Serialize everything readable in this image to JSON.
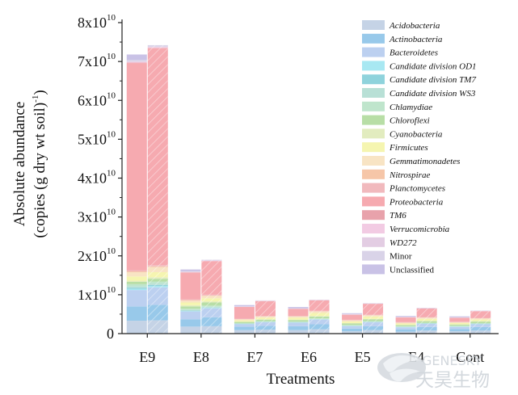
{
  "chart_data": {
    "type": "bar",
    "stacked": true,
    "xlabel": "Treatments",
    "ylabel_line1": "Absolute abundance",
    "ylabel_line2_main": "(copies (g dry wt soil)",
    "ylabel_line2_sup": "-1",
    "ylabel_line2_end": ")",
    "ylim": [
      0,
      80000000000
    ],
    "yticks": [
      {
        "base": "0",
        "exp": ""
      },
      {
        "base": "1x10",
        "exp": "10"
      },
      {
        "base": "2x10",
        "exp": "10"
      },
      {
        "base": "3x10",
        "exp": "10"
      },
      {
        "base": "4x10",
        "exp": "10"
      },
      {
        "base": "5x10",
        "exp": "10"
      },
      {
        "base": "6x10",
        "exp": "10"
      },
      {
        "base": "7x10",
        "exp": "10"
      },
      {
        "base": "8x10",
        "exp": "10"
      }
    ],
    "categories": [
      "E9",
      "E8",
      "E7",
      "E6",
      "E5",
      "E4",
      "Cont"
    ],
    "legend_position": "top-right",
    "series": [
      {
        "name": "Acidobacteria",
        "color": "#c5d3e6",
        "italic": true,
        "values": [
          [
            3300000000.0,
            3400000000.0
          ],
          [
            1800000000.0,
            1900000000.0
          ],
          [
            900000000.0,
            1000000000.0
          ],
          [
            900000000.0,
            1100000000.0
          ],
          [
            600000000.0,
            900000000.0
          ],
          [
            500000000.0,
            800000000.0
          ],
          [
            600000000.0,
            800000000.0
          ]
        ]
      },
      {
        "name": "Actinobacteria",
        "color": "#98c9ea",
        "italic": true,
        "values": [
          [
            3700000000.0,
            4000000000.0
          ],
          [
            1900000000.0,
            2300000000.0
          ],
          [
            900000000.0,
            1000000000.0
          ],
          [
            1000000000.0,
            1300000000.0
          ],
          [
            700000000.0,
            1000000000.0
          ],
          [
            600000000.0,
            900000000.0
          ],
          [
            600000000.0,
            900000000.0
          ]
        ]
      },
      {
        "name": "Bacteroidetes",
        "color": "#bcd0f0",
        "italic": true,
        "values": [
          [
            4200000000.0,
            4500000000.0
          ],
          [
            2000000000.0,
            2300000000.0
          ],
          [
            600000000.0,
            900000000.0
          ],
          [
            900000000.0,
            1200000000.0
          ],
          [
            600000000.0,
            1000000000.0
          ],
          [
            500000000.0,
            800000000.0
          ],
          [
            500000000.0,
            700000000.0
          ]
        ]
      },
      {
        "name": "Candidate division OD1",
        "color": "#a8e8f2",
        "italic": true,
        "values": [
          [
            300000000.0,
            300000000.0
          ],
          [
            100000000.0,
            100000000.0
          ],
          [
            50000000.0,
            50000000.0
          ],
          [
            50000000.0,
            50000000.0
          ],
          [
            50000000.0,
            50000000.0
          ],
          [
            50000000.0,
            50000000.0
          ],
          [
            50000000.0,
            50000000.0
          ]
        ]
      },
      {
        "name": "Candidate division TM7",
        "color": "#8fd3dc",
        "italic": true,
        "values": [
          [
            300000000.0,
            300000000.0
          ],
          [
            100000000.0,
            100000000.0
          ],
          [
            50000000.0,
            50000000.0
          ],
          [
            50000000.0,
            50000000.0
          ],
          [
            50000000.0,
            50000000.0
          ],
          [
            50000000.0,
            50000000.0
          ],
          [
            50000000.0,
            50000000.0
          ]
        ]
      },
      {
        "name": "Candidate division WS3",
        "color": "#b8e0d6",
        "italic": true,
        "values": [
          [
            400000000.0,
            400000000.0
          ],
          [
            200000000.0,
            200000000.0
          ],
          [
            100000000.0,
            100000000.0
          ],
          [
            100000000.0,
            100000000.0
          ],
          [
            100000000.0,
            100000000.0
          ],
          [
            100000000.0,
            100000000.0
          ],
          [
            100000000.0,
            100000000.0
          ]
        ]
      },
      {
        "name": "Chlamydiae",
        "color": "#bfe5cc",
        "italic": true,
        "values": [
          [
            500000000.0,
            500000000.0
          ],
          [
            300000000.0,
            300000000.0
          ],
          [
            100000000.0,
            100000000.0
          ],
          [
            100000000.0,
            100000000.0
          ],
          [
            100000000.0,
            100000000.0
          ],
          [
            100000000.0,
            100000000.0
          ],
          [
            100000000.0,
            100000000.0
          ]
        ]
      },
      {
        "name": "Chloroflexi",
        "color": "#b8dea6",
        "italic": true,
        "values": [
          [
            600000000.0,
            700000000.0
          ],
          [
            600000000.0,
            800000000.0
          ],
          [
            300000000.0,
            400000000.0
          ],
          [
            400000000.0,
            500000000.0
          ],
          [
            400000000.0,
            500000000.0
          ],
          [
            300000000.0,
            400000000.0
          ],
          [
            300000000.0,
            400000000.0
          ]
        ]
      },
      {
        "name": "Cyanobacteria",
        "color": "#e2ecbf",
        "italic": true,
        "values": [
          [
            300000000.0,
            400000000.0
          ],
          [
            300000000.0,
            300000000.0
          ],
          [
            100000000.0,
            100000000.0
          ],
          [
            100000000.0,
            100000000.0
          ],
          [
            100000000.0,
            100000000.0
          ],
          [
            100000000.0,
            100000000.0
          ],
          [
            100000000.0,
            100000000.0
          ]
        ]
      },
      {
        "name": "Firmicutes",
        "color": "#f5f5b0",
        "italic": true,
        "values": [
          [
            1100000000.0,
            1300000000.0
          ],
          [
            700000000.0,
            800000000.0
          ],
          [
            300000000.0,
            400000000.0
          ],
          [
            500000000.0,
            800000000.0
          ],
          [
            400000000.0,
            600000000.0
          ],
          [
            300000000.0,
            500000000.0
          ],
          [
            300000000.0,
            400000000.0
          ]
        ]
      },
      {
        "name": "Gemmatimonadetes",
        "color": "#f8e4c4",
        "italic": true,
        "values": [
          [
            1100000000.0,
            1300000000.0
          ],
          [
            500000000.0,
            600000000.0
          ],
          [
            300000000.0,
            300000000.0
          ],
          [
            300000000.0,
            400000000.0
          ],
          [
            300000000.0,
            300000000.0
          ],
          [
            200000000.0,
            300000000.0
          ],
          [
            200000000.0,
            300000000.0
          ]
        ]
      },
      {
        "name": "Nitrospirae",
        "color": "#f6c6a8",
        "italic": true,
        "values": [
          [
            200000000.0,
            200000000.0
          ],
          [
            100000000.0,
            100000000.0
          ],
          [
            50000000.0,
            50000000.0
          ],
          [
            50000000.0,
            50000000.0
          ],
          [
            50000000.0,
            50000000.0
          ],
          [
            50000000.0,
            50000000.0
          ],
          [
            50000000.0,
            50000000.0
          ]
        ]
      },
      {
        "name": "Planctomycetes",
        "color": "#f1b9bd",
        "italic": true,
        "values": [
          [
            300000000.0,
            300000000.0
          ],
          [
            200000000.0,
            200000000.0
          ],
          [
            100000000.0,
            100000000.0
          ],
          [
            100000000.0,
            100000000.0
          ],
          [
            100000000.0,
            100000000.0
          ],
          [
            100000000.0,
            100000000.0
          ],
          [
            100000000.0,
            100000000.0
          ]
        ]
      },
      {
        "name": "Proteobacteria",
        "color": "#f6aab0",
        "italic": true,
        "values": [
          [
            53300000000.0,
            55800000000.0
          ],
          [
            6900000000.0,
            8600000000.0
          ],
          [
            3000000000.0,
            3800000000.0
          ],
          [
            1800000000.0,
            2700000000.0
          ],
          [
            1300000000.0,
            2800000000.0
          ],
          [
            1200000000.0,
            2200000000.0
          ],
          [
            1000000000.0,
            1700000000.0
          ]
        ]
      },
      {
        "name": "TM6",
        "color": "#e8a2ab",
        "italic": true,
        "values": [
          [
            100000000.0,
            100000000.0
          ],
          [
            50000000.0,
            50000000.0
          ],
          [
            20000000.0,
            20000000.0
          ],
          [
            20000000.0,
            20000000.0
          ],
          [
            20000000.0,
            20000000.0
          ],
          [
            20000000.0,
            20000000.0
          ],
          [
            20000000.0,
            20000000.0
          ]
        ]
      },
      {
        "name": "Verrucomicrobia",
        "color": "#f2cbe3",
        "italic": true,
        "values": [
          [
            200000000.0,
            200000000.0
          ],
          [
            100000000.0,
            100000000.0
          ],
          [
            50000000.0,
            50000000.0
          ],
          [
            50000000.0,
            50000000.0
          ],
          [
            50000000.0,
            50000000.0
          ],
          [
            50000000.0,
            50000000.0
          ],
          [
            50000000.0,
            50000000.0
          ]
        ]
      },
      {
        "name": "WD272",
        "color": "#e3cde3",
        "italic": true,
        "values": [
          [
            100000000.0,
            100000000.0
          ],
          [
            50000000.0,
            50000000.0
          ],
          [
            20000000.0,
            20000000.0
          ],
          [
            20000000.0,
            20000000.0
          ],
          [
            20000000.0,
            20000000.0
          ],
          [
            20000000.0,
            20000000.0
          ],
          [
            20000000.0,
            20000000.0
          ]
        ]
      },
      {
        "name": "Minor",
        "color": "#d9d3e8",
        "italic": false,
        "values": [
          [
            400000000.0,
            400000000.0
          ],
          [
            200000000.0,
            200000000.0
          ],
          [
            100000000.0,
            100000000.0
          ],
          [
            100000000.0,
            100000000.0
          ],
          [
            100000000.0,
            100000000.0
          ],
          [
            100000000.0,
            100000000.0
          ],
          [
            100000000.0,
            100000000.0
          ]
        ]
      },
      {
        "name": "Unclassified",
        "color": "#c9c2e6",
        "italic": false,
        "values": [
          [
            1400000000.0,
            0.0
          ],
          [
            400000000.0,
            0.0
          ],
          [
            300000000.0,
            0.0
          ],
          [
            300000000.0,
            0.0
          ],
          [
            200000000.0,
            0.0
          ],
          [
            200000000.0,
            0.0
          ],
          [
            200000000.0,
            0.0
          ]
        ]
      }
    ],
    "hatched_second_bar": true
  },
  "watermark": {
    "latin": "GENESKY",
    "cjk": "天昊生物"
  }
}
